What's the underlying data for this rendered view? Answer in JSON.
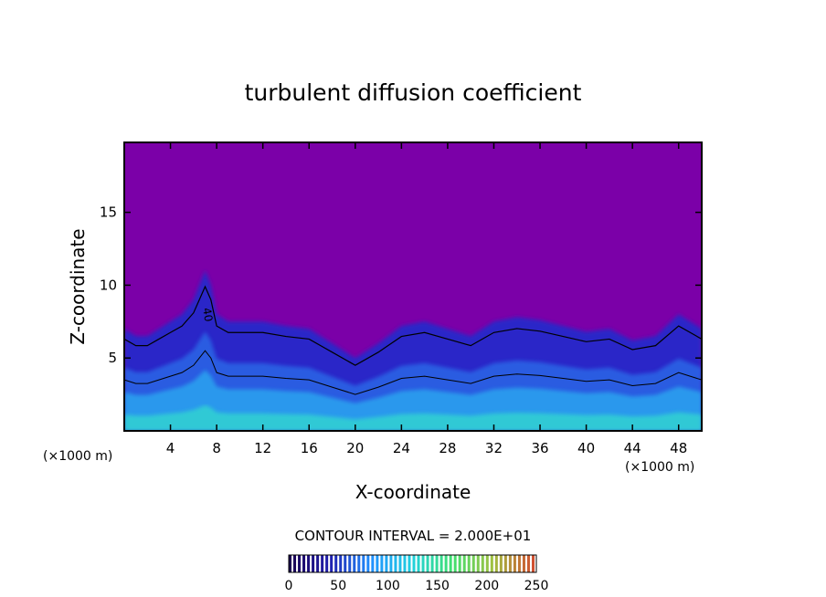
{
  "chart_data": {
    "type": "heatmap",
    "title": "turbulent diffusion coefficient",
    "xlabel": "X-coordinate",
    "ylabel": "Z-coordinate",
    "x_multiplier_label": "(×1000 m)",
    "z_multiplier_label": "(×1000 m)",
    "xlim": [
      0,
      50
    ],
    "ylim": [
      0,
      19.8
    ],
    "x_ticks": [
      4,
      8,
      12,
      16,
      20,
      24,
      28,
      32,
      36,
      40,
      44,
      48
    ],
    "x_tick_labels": [
      "4",
      "8",
      "12",
      "16",
      "20",
      "24",
      "28",
      "32",
      "36",
      "40",
      "44",
      "48"
    ],
    "y_ticks": [
      5,
      10,
      15
    ],
    "y_tick_labels": [
      "5",
      "10",
      "15"
    ],
    "contour_interval_text": "CONTOUR INTERVAL = 2.000E+01",
    "contour_interval": 20,
    "contour_label": "40",
    "colorbar": {
      "min": 0,
      "max": 250,
      "ticks": [
        0,
        50,
        100,
        150,
        200,
        250
      ],
      "tick_labels": [
        "0",
        "50",
        "100",
        "150",
        "200",
        "250"
      ],
      "colors": [
        "#1a0050",
        "#2020b0",
        "#2090ff",
        "#20d0e0",
        "#40e070",
        "#a0c040",
        "#d05030"
      ]
    },
    "background_color": "#7b00a8",
    "turbulent_region_envelope": {
      "x": [
        0,
        1,
        2,
        3,
        4,
        5,
        6,
        6.5,
        7,
        7.5,
        8,
        9,
        10,
        12,
        14,
        16,
        18,
        20,
        22,
        24,
        26,
        28,
        30,
        32,
        34,
        36,
        38,
        40,
        42,
        44,
        46,
        48,
        50
      ],
      "z": [
        7,
        6.5,
        6.5,
        7,
        7.5,
        8,
        9,
        10,
        11,
        10,
        8,
        7.5,
        7.5,
        7.5,
        7.2,
        7,
        6,
        5,
        6,
        7.2,
        7.5,
        7,
        6.5,
        7.5,
        7.8,
        7.6,
        7.2,
        6.8,
        7,
        6.2,
        6.5,
        8,
        7
      ]
    }
  }
}
